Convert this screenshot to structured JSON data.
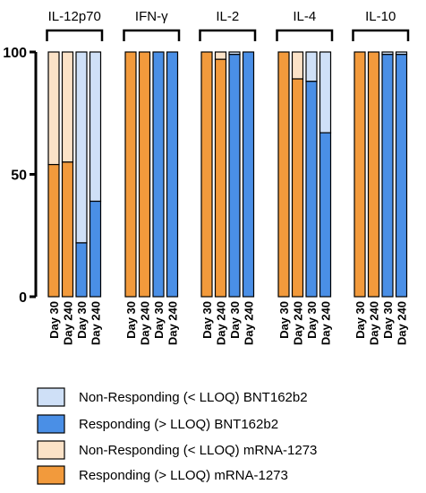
{
  "chart_data": {
    "type": "bar",
    "stacked": true,
    "title": "",
    "xlabel": "",
    "ylabel": "",
    "ylim": [
      0,
      100
    ],
    "yticks": [
      0,
      50,
      100
    ],
    "grid": false,
    "legend_position": "bottom",
    "groups": [
      "IL-12p70",
      "IFN-γ",
      "IL-2",
      "IL-4",
      "IL-10"
    ],
    "categories": [
      "Day 30",
      "Day 240",
      "Day 30",
      "Day 240"
    ],
    "series": [
      {
        "name": "Non-Responding (< LLOQ) BNT162b2",
        "color": "#cfe0f7"
      },
      {
        "name": "Responding (> LLOQ) BNT162b2",
        "color": "#4a8fe6"
      },
      {
        "name": "Non-Responding (< LLOQ) mRNA-1273",
        "color": "#fbe2c7"
      },
      {
        "name": "Responding (> LLOQ) mRNA-1273",
        "color": "#f29a3c"
      }
    ],
    "bars": [
      {
        "group": "IL-12p70",
        "day": "Day 30",
        "vaccine": "mRNA-1273",
        "responding": 54,
        "non_responding": 46
      },
      {
        "group": "IL-12p70",
        "day": "Day 240",
        "vaccine": "mRNA-1273",
        "responding": 55,
        "non_responding": 45
      },
      {
        "group": "IL-12p70",
        "day": "Day 30",
        "vaccine": "BNT162b2",
        "responding": 22,
        "non_responding": 78
      },
      {
        "group": "IL-12p70",
        "day": "Day 240",
        "vaccine": "BNT162b2",
        "responding": 39,
        "non_responding": 61
      },
      {
        "group": "IFN-γ",
        "day": "Day 30",
        "vaccine": "mRNA-1273",
        "responding": 100,
        "non_responding": 0
      },
      {
        "group": "IFN-γ",
        "day": "Day 240",
        "vaccine": "mRNA-1273",
        "responding": 100,
        "non_responding": 0
      },
      {
        "group": "IFN-γ",
        "day": "Day 30",
        "vaccine": "BNT162b2",
        "responding": 100,
        "non_responding": 0
      },
      {
        "group": "IFN-γ",
        "day": "Day 240",
        "vaccine": "BNT162b2",
        "responding": 100,
        "non_responding": 0
      },
      {
        "group": "IL-2",
        "day": "Day 30",
        "vaccine": "mRNA-1273",
        "responding": 100,
        "non_responding": 0
      },
      {
        "group": "IL-2",
        "day": "Day 240",
        "vaccine": "mRNA-1273",
        "responding": 97,
        "non_responding": 3
      },
      {
        "group": "IL-2",
        "day": "Day 30",
        "vaccine": "BNT162b2",
        "responding": 99,
        "non_responding": 1
      },
      {
        "group": "IL-2",
        "day": "Day 240",
        "vaccine": "BNT162b2",
        "responding": 100,
        "non_responding": 0
      },
      {
        "group": "IL-4",
        "day": "Day 30",
        "vaccine": "mRNA-1273",
        "responding": 100,
        "non_responding": 0
      },
      {
        "group": "IL-4",
        "day": "Day 240",
        "vaccine": "mRNA-1273",
        "responding": 89,
        "non_responding": 11
      },
      {
        "group": "IL-4",
        "day": "Day 30",
        "vaccine": "BNT162b2",
        "responding": 88,
        "non_responding": 12
      },
      {
        "group": "IL-4",
        "day": "Day 240",
        "vaccine": "BNT162b2",
        "responding": 67,
        "non_responding": 33
      },
      {
        "group": "IL-10",
        "day": "Day 30",
        "vaccine": "mRNA-1273",
        "responding": 100,
        "non_responding": 0
      },
      {
        "group": "IL-10",
        "day": "Day 240",
        "vaccine": "mRNA-1273",
        "responding": 100,
        "non_responding": 0
      },
      {
        "group": "IL-10",
        "day": "Day 30",
        "vaccine": "BNT162b2",
        "responding": 99,
        "non_responding": 1
      },
      {
        "group": "IL-10",
        "day": "Day 240",
        "vaccine": "BNT162b2",
        "responding": 99,
        "non_responding": 1
      }
    ]
  }
}
